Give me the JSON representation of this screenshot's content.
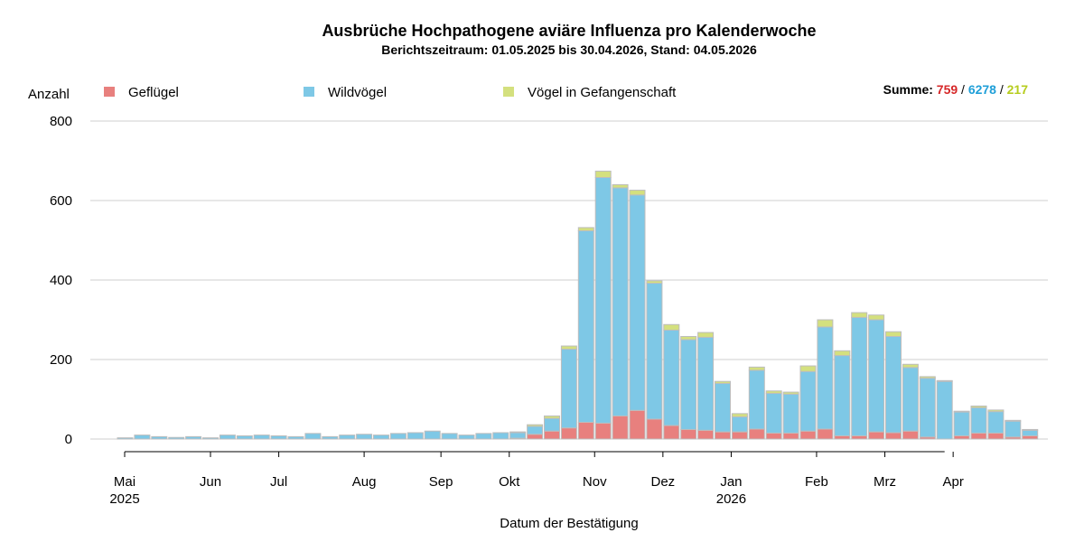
{
  "chart_data": {
    "type": "bar",
    "stacked": true,
    "title": "Ausbrüche Hochpathogene aviäre Influenza pro Kalenderwoche",
    "subtitle": "Berichtszeitraum: 01.05.2025 bis 30.04.2026, Stand: 04.05.2026",
    "ylabel": "Anzahl",
    "xlabel": "Datum der Bestätigung",
    "ylim": [
      0,
      800
    ],
    "yticks": [
      "0",
      "200",
      "400",
      "600",
      "800"
    ],
    "grid": true,
    "legend_position": "top",
    "summary": {
      "label": "Summe:",
      "values": [
        "759",
        "6278",
        "217"
      ],
      "separator": " / "
    },
    "x_axis": {
      "month_ticks": [
        {
          "label": "Mai",
          "year": "2025",
          "week": 0.0
        },
        {
          "label": "Jun",
          "year": "",
          "week": 5.0
        },
        {
          "label": "Jul",
          "year": "",
          "week": 9.0
        },
        {
          "label": "Aug",
          "year": "",
          "week": 14.0
        },
        {
          "label": "Sep",
          "year": "",
          "week": 18.5
        },
        {
          "label": "Okt",
          "year": "",
          "week": 22.5
        },
        {
          "label": "Nov",
          "year": "",
          "week": 27.5
        },
        {
          "label": "Dez",
          "year": "",
          "week": 31.5
        },
        {
          "label": "Jan",
          "year": "2026",
          "week": 35.5
        },
        {
          "label": "Feb",
          "year": "",
          "week": 40.5
        },
        {
          "label": "Mrz",
          "year": "",
          "week": 44.5
        },
        {
          "label": "Apr",
          "year": "",
          "week": 48.5
        }
      ]
    },
    "series": [
      {
        "name": "Geflügel",
        "color": "#E8807E",
        "values": [
          0,
          0,
          0,
          0,
          0,
          0,
          0,
          0,
          0,
          0,
          0,
          0,
          0,
          0,
          0,
          0,
          0,
          0,
          0,
          0,
          0,
          0,
          0,
          2,
          12,
          20,
          28,
          42,
          40,
          58,
          72,
          50,
          34,
          24,
          22,
          18,
          18,
          25,
          15,
          15,
          20,
          25,
          8,
          8,
          18,
          16,
          20,
          5,
          0,
          8,
          15,
          15,
          5,
          8
        ]
      },
      {
        "name": "Wildvögel",
        "color": "#7EC8E6",
        "values": [
          3,
          10,
          6,
          4,
          6,
          3,
          10,
          8,
          10,
          8,
          6,
          14,
          6,
          10,
          12,
          10,
          14,
          16,
          20,
          14,
          10,
          14,
          16,
          14,
          20,
          32,
          198,
          482,
          618,
          574,
          542,
          342,
          240,
          226,
          234,
          122,
          38,
          148,
          100,
          98,
          150,
          257,
          202,
          298,
          282,
          242,
          160,
          148,
          145,
          60,
          64,
          54,
          40,
          14
        ]
      },
      {
        "name": "Vögel in Gefangenschaft",
        "color": "#D4E07E",
        "values": [
          0,
          0,
          0,
          0,
          0,
          0,
          0,
          0,
          0,
          0,
          0,
          0,
          0,
          0,
          0,
          0,
          0,
          0,
          0,
          0,
          0,
          0,
          0,
          2,
          4,
          6,
          8,
          8,
          16,
          8,
          12,
          6,
          14,
          8,
          12,
          5,
          8,
          8,
          6,
          5,
          14,
          18,
          12,
          12,
          12,
          12,
          8,
          4,
          2,
          2,
          4,
          4,
          2,
          2
        ]
      }
    ]
  }
}
